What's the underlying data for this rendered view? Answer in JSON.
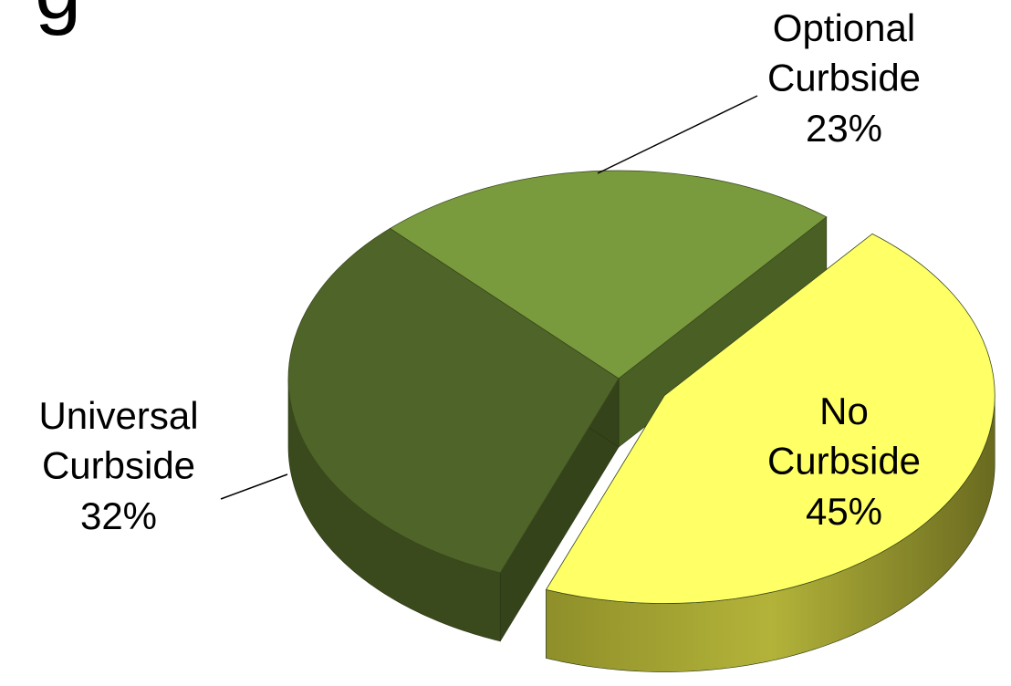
{
  "chart_data": {
    "type": "pie",
    "title": "g",
    "categories": [
      "Optional Curbside",
      "Universal Curbside",
      "No Curbside"
    ],
    "values": [
      23,
      32,
      45
    ],
    "value_labels": [
      "23%",
      "32%",
      "45%"
    ],
    "colors": [
      "#7a9a3e",
      "#4f6428",
      "#ffff66"
    ]
  }
}
